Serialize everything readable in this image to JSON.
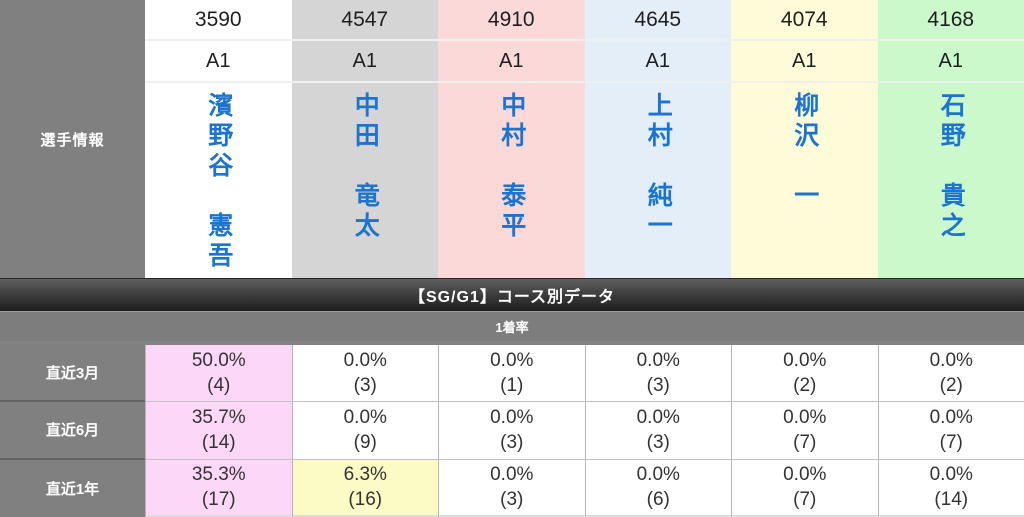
{
  "sidebar": {
    "label": "選手情報"
  },
  "players": [
    {
      "number": "3590",
      "rank": "A1",
      "name": "濱野谷　憲吾",
      "bg": "#ffffff"
    },
    {
      "number": "4547",
      "rank": "A1",
      "name": "中田　竜太",
      "bg": "#d5d5d5"
    },
    {
      "number": "4910",
      "rank": "A1",
      "name": "中村　泰平",
      "bg": "#fcd9d9"
    },
    {
      "number": "4645",
      "rank": "A1",
      "name": "上村　純一",
      "bg": "#e3eef8"
    },
    {
      "number": "4074",
      "rank": "A1",
      "name": "柳沢　一",
      "bg": "#fdfbd8"
    },
    {
      "number": "4168",
      "rank": "A1",
      "name": "石野　貴之",
      "bg": "#ccf9cc"
    }
  ],
  "section": {
    "title": "【SG/G1】コース別データ",
    "subtitle": "1着率"
  },
  "table": {
    "rows": [
      {
        "label": "直近3月",
        "cells": [
          {
            "pct": "50.0%",
            "count": "(4)",
            "highlight": "pink"
          },
          {
            "pct": "0.0%",
            "count": "(3)"
          },
          {
            "pct": "0.0%",
            "count": "(1)"
          },
          {
            "pct": "0.0%",
            "count": "(3)"
          },
          {
            "pct": "0.0%",
            "count": "(2)"
          },
          {
            "pct": "0.0%",
            "count": "(2)"
          }
        ]
      },
      {
        "label": "直近6月",
        "cells": [
          {
            "pct": "35.7%",
            "count": "(14)",
            "highlight": "pink"
          },
          {
            "pct": "0.0%",
            "count": "(9)"
          },
          {
            "pct": "0.0%",
            "count": "(3)"
          },
          {
            "pct": "0.0%",
            "count": "(3)"
          },
          {
            "pct": "0.0%",
            "count": "(7)"
          },
          {
            "pct": "0.0%",
            "count": "(7)"
          }
        ]
      },
      {
        "label": "直近1年",
        "cells": [
          {
            "pct": "35.3%",
            "count": "(17)",
            "highlight": "pink"
          },
          {
            "pct": "6.3%",
            "count": "(16)",
            "highlight": "yellow"
          },
          {
            "pct": "0.0%",
            "count": "(3)"
          },
          {
            "pct": "0.0%",
            "count": "(6)"
          },
          {
            "pct": "0.0%",
            "count": "(7)"
          },
          {
            "pct": "0.0%",
            "count": "(14)"
          }
        ]
      }
    ]
  },
  "colors": {
    "highlight_pink": "#fdd7f7",
    "highlight_yellow": "#fcfac5",
    "name_link_blue": "#1b73d2",
    "sidebar_gray": "#808080"
  }
}
